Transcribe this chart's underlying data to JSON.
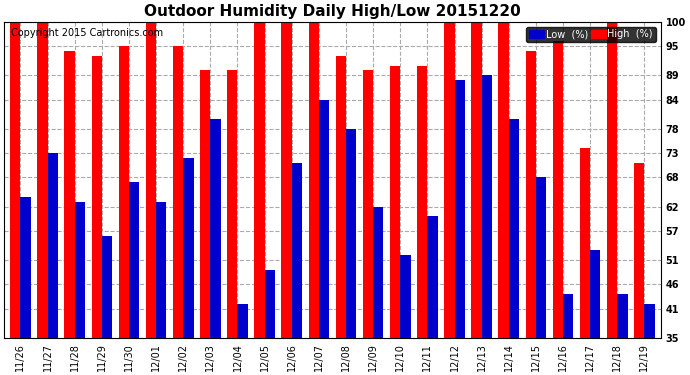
{
  "title": "Outdoor Humidity Daily High/Low 20151220",
  "copyright": "Copyright 2015 Cartronics.com",
  "legend_low": "Low  (%)",
  "legend_high": "High  (%)",
  "dates": [
    "11/26",
    "11/27",
    "11/28",
    "11/29",
    "11/30",
    "12/01",
    "12/02",
    "12/03",
    "12/04",
    "12/05",
    "12/06",
    "12/07",
    "12/08",
    "12/09",
    "12/10",
    "12/11",
    "12/12",
    "12/13",
    "12/14",
    "12/15",
    "12/16",
    "12/17",
    "12/18",
    "12/19"
  ],
  "high": [
    100,
    100,
    94,
    93,
    95,
    100,
    95,
    90,
    90,
    100,
    100,
    100,
    93,
    90,
    91,
    91,
    100,
    100,
    100,
    94,
    96,
    74,
    100,
    71
  ],
  "low": [
    64,
    73,
    63,
    56,
    67,
    63,
    72,
    80,
    42,
    49,
    71,
    84,
    78,
    62,
    52,
    60,
    88,
    89,
    80,
    68,
    44,
    53,
    44,
    42
  ],
  "ylim": [
    35,
    100
  ],
  "yticks": [
    35,
    41,
    46,
    51,
    57,
    62,
    68,
    73,
    78,
    84,
    89,
    95,
    100
  ],
  "bar_width": 0.38,
  "high_color": "#ff0000",
  "low_color": "#0000cc",
  "bg_color": "#ffffff",
  "grid_color": "#aaaaaa",
  "title_fontsize": 11,
  "tick_fontsize": 7,
  "copyright_fontsize": 7
}
